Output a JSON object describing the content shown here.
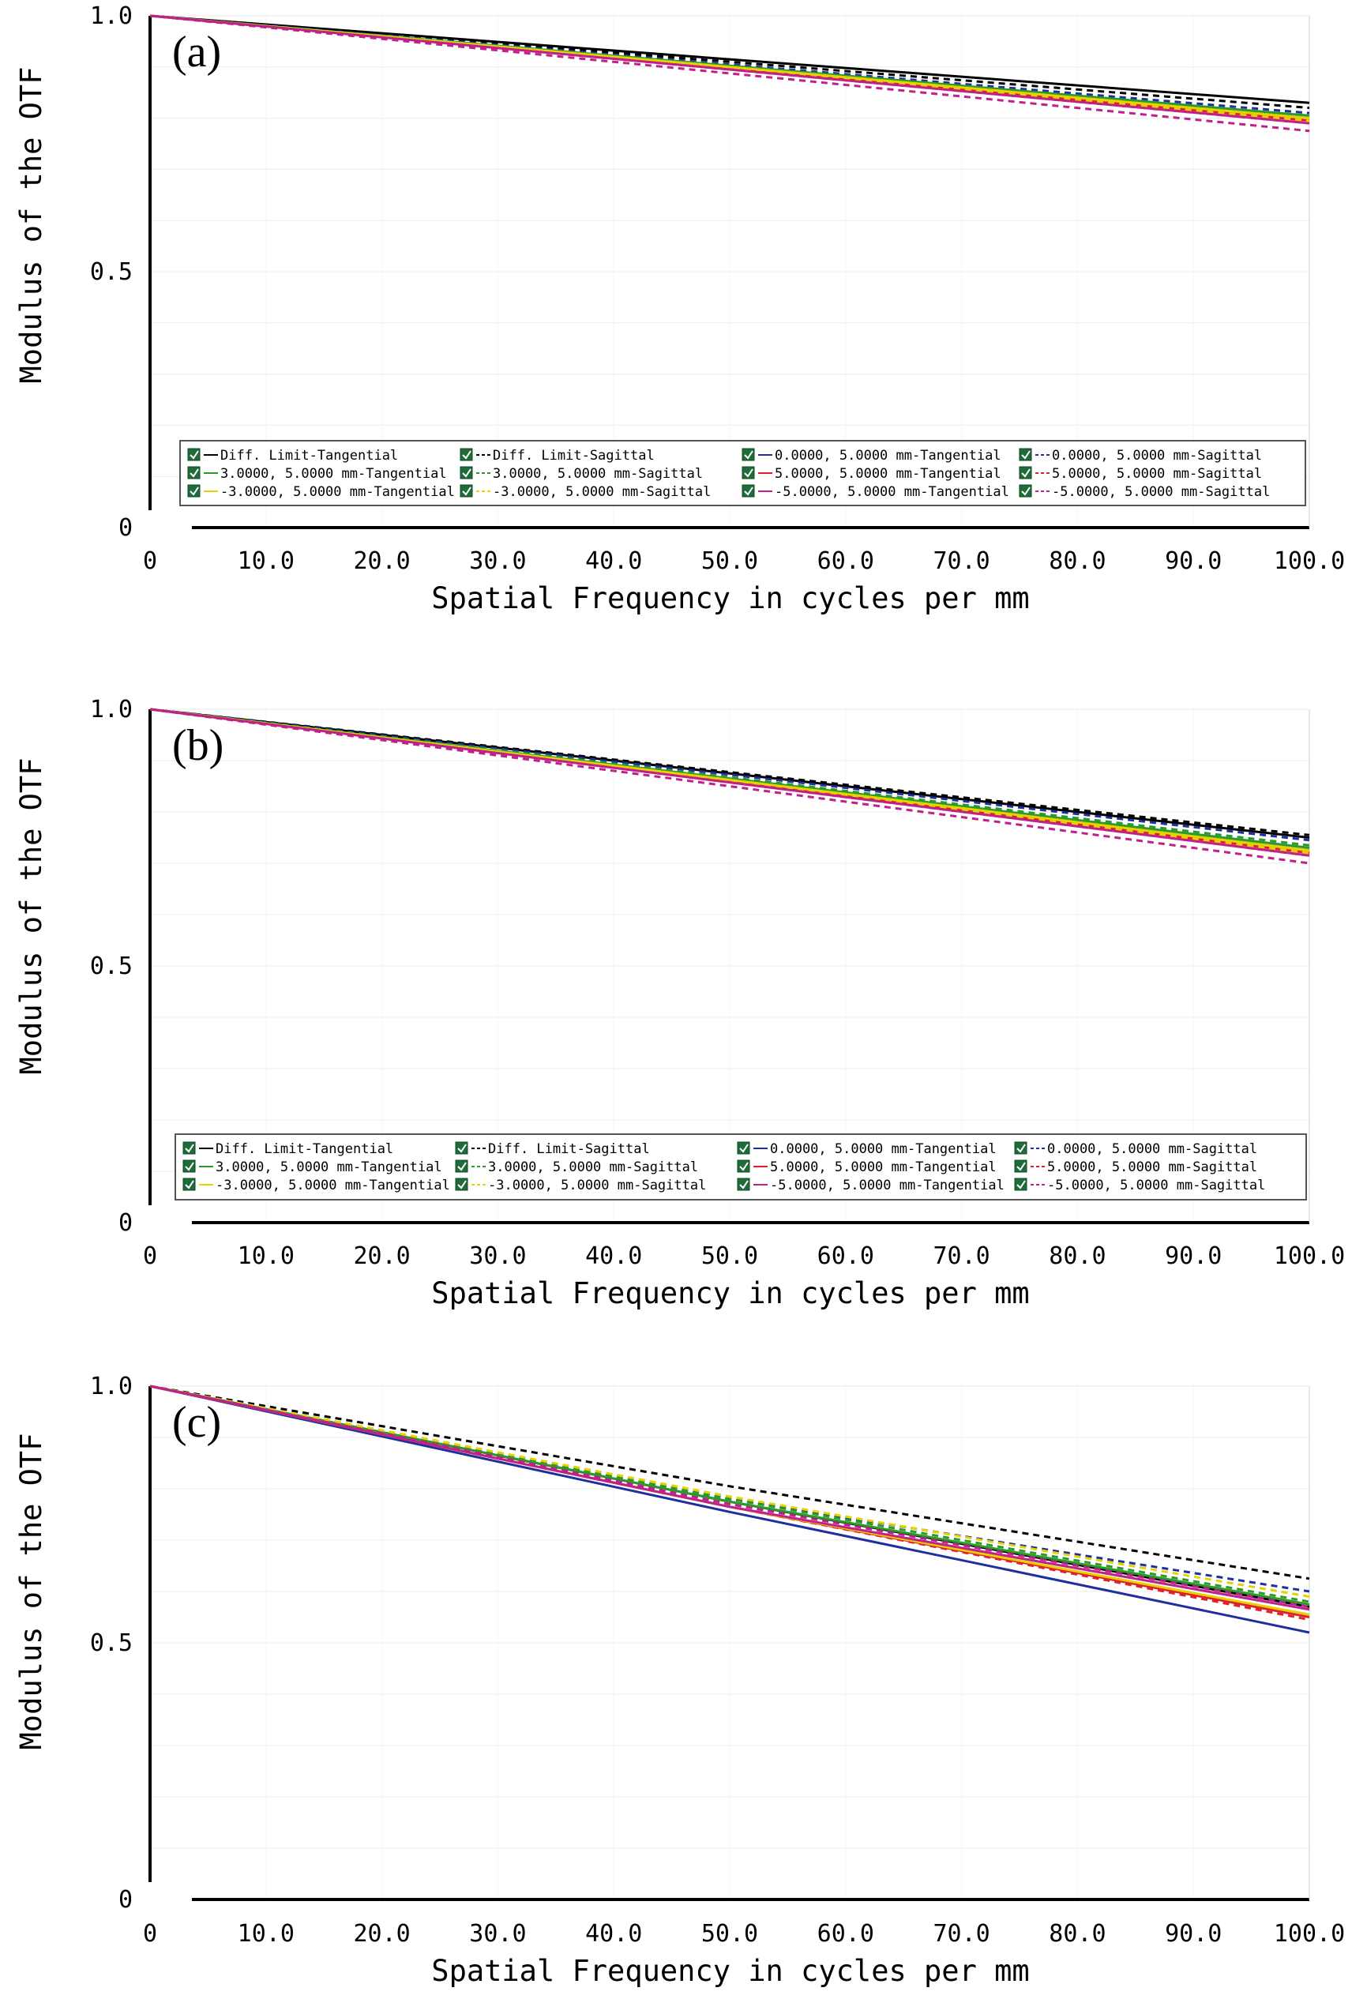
{
  "chart_data": [
    {
      "type": "line",
      "panel_label": "(a)",
      "xlabel": "Spatial Frequency in cycles per mm",
      "ylabel": "Modulus of the OTF",
      "xlim": [
        0,
        100
      ],
      "ylim": [
        0,
        1
      ],
      "xticks": [
        "0",
        "10.0",
        "20.0",
        "30.0",
        "40.0",
        "50.0",
        "60.0",
        "70.0",
        "80.0",
        "90.0",
        "100.0"
      ],
      "yticks": [
        "0",
        "0.5",
        "1.0"
      ],
      "grid": true,
      "legend_position": "bottom",
      "x": [
        0,
        100
      ],
      "series": [
        {
          "name": "Diff. Limit-Tangential",
          "color": "#000000",
          "dashed": false,
          "values": [
            1.0,
            0.83
          ]
        },
        {
          "name": "Diff. Limit-Sagittal",
          "color": "#000000",
          "dashed": true,
          "values": [
            1.0,
            0.82
          ]
        },
        {
          "name": "0.0000, 5.0000 mm-Tangential",
          "color": "#1f2f9f",
          "dashed": false,
          "values": [
            1.0,
            0.8
          ]
        },
        {
          "name": "0.0000, 5.0000 mm-Sagittal",
          "color": "#1f2f9f",
          "dashed": true,
          "values": [
            1.0,
            0.81
          ]
        },
        {
          "name": "3.0000, 5.0000 mm-Tangential",
          "color": "#2a9a2a",
          "dashed": false,
          "values": [
            1.0,
            0.805
          ]
        },
        {
          "name": "3.0000, 5.0000 mm-Sagittal",
          "color": "#2a9a2a",
          "dashed": true,
          "values": [
            1.0,
            0.8
          ]
        },
        {
          "name": "5.0000, 5.0000 mm-Tangential",
          "color": "#e0202a",
          "dashed": false,
          "values": [
            1.0,
            0.795
          ]
        },
        {
          "name": "5.0000, 5.0000 mm-Sagittal",
          "color": "#e0202a",
          "dashed": true,
          "values": [
            1.0,
            0.79
          ]
        },
        {
          "name": "-3.0000, 5.0000 mm-Tangential",
          "color": "#e6d200",
          "dashed": false,
          "values": [
            1.0,
            0.8
          ]
        },
        {
          "name": "-3.0000, 5.0000 mm-Sagittal",
          "color": "#e6d200",
          "dashed": true,
          "values": [
            1.0,
            0.795
          ]
        },
        {
          "name": "-5.0000, 5.0000 mm-Tangential",
          "color": "#c0208a",
          "dashed": false,
          "values": [
            1.0,
            0.79
          ]
        },
        {
          "name": "-5.0000, 5.0000 mm-Sagittal",
          "color": "#c0208a",
          "dashed": true,
          "values": [
            1.0,
            0.775
          ]
        }
      ]
    },
    {
      "type": "line",
      "panel_label": "(b)",
      "xlabel": "Spatial Frequency in cycles per mm",
      "ylabel": "Modulus of the OTF",
      "xlim": [
        0,
        100
      ],
      "ylim": [
        0,
        1
      ],
      "xticks": [
        "0",
        "10.0",
        "20.0",
        "30.0",
        "40.0",
        "50.0",
        "60.0",
        "70.0",
        "80.0",
        "90.0",
        "100.0"
      ],
      "yticks": [
        "0",
        "0.5",
        "1.0"
      ],
      "grid": true,
      "legend_position": "bottom",
      "x": [
        0,
        100
      ],
      "series": [
        {
          "name": "Diff. Limit-Tangential",
          "color": "#000000",
          "dashed": false,
          "values": [
            1.0,
            0.75
          ]
        },
        {
          "name": "Diff. Limit-Sagittal",
          "color": "#000000",
          "dashed": true,
          "values": [
            1.0,
            0.755
          ]
        },
        {
          "name": "0.0000, 5.0000 mm-Tangential",
          "color": "#1f2f9f",
          "dashed": false,
          "values": [
            1.0,
            0.725
          ]
        },
        {
          "name": "0.0000, 5.0000 mm-Sagittal",
          "color": "#1f2f9f",
          "dashed": true,
          "values": [
            1.0,
            0.745
          ]
        },
        {
          "name": "3.0000, 5.0000 mm-Tangential",
          "color": "#2a9a2a",
          "dashed": false,
          "values": [
            1.0,
            0.73
          ]
        },
        {
          "name": "3.0000, 5.0000 mm-Sagittal",
          "color": "#2a9a2a",
          "dashed": true,
          "values": [
            1.0,
            0.735
          ]
        },
        {
          "name": "5.0000, 5.0000 mm-Tangential",
          "color": "#e0202a",
          "dashed": false,
          "values": [
            1.0,
            0.72
          ]
        },
        {
          "name": "5.0000, 5.0000 mm-Sagittal",
          "color": "#e0202a",
          "dashed": true,
          "values": [
            1.0,
            0.715
          ]
        },
        {
          "name": "-3.0000, 5.0000 mm-Tangential",
          "color": "#e6d200",
          "dashed": false,
          "values": [
            1.0,
            0.725
          ]
        },
        {
          "name": "-3.0000, 5.0000 mm-Sagittal",
          "color": "#e6d200",
          "dashed": true,
          "values": [
            1.0,
            0.72
          ]
        },
        {
          "name": "-5.0000, 5.0000 mm-Tangential",
          "color": "#c0208a",
          "dashed": false,
          "values": [
            1.0,
            0.715
          ]
        },
        {
          "name": "-5.0000, 5.0000 mm-Sagittal",
          "color": "#c0208a",
          "dashed": true,
          "values": [
            1.0,
            0.7
          ]
        }
      ]
    },
    {
      "type": "line",
      "panel_label": "(c)",
      "xlabel": "Spatial Frequency in cycles per mm",
      "ylabel": "Modulus of the OTF",
      "xlim": [
        0,
        100
      ],
      "ylim": [
        0,
        1
      ],
      "xticks": [
        "0",
        "10.0",
        "20.0",
        "30.0",
        "40.0",
        "50.0",
        "60.0",
        "70.0",
        "80.0",
        "90.0",
        "100.0"
      ],
      "yticks": [
        "0",
        "0.5",
        "1.0"
      ],
      "grid": true,
      "legend_position": "none",
      "x": [
        0,
        50,
        100
      ],
      "series": [
        {
          "name": "Diff. Limit-Tangential",
          "color": "#000000",
          "dashed": false,
          "values": [
            1.0,
            0.775,
            0.57
          ]
        },
        {
          "name": "Diff. Limit-Sagittal",
          "color": "#000000",
          "dashed": true,
          "values": [
            1.0,
            0.805,
            0.625
          ]
        },
        {
          "name": "0.0000, 5.0000 mm-Tangential",
          "color": "#1f2f9f",
          "dashed": false,
          "values": [
            1.0,
            0.755,
            0.52
          ]
        },
        {
          "name": "0.0000, 5.0000 mm-Sagittal",
          "color": "#1f2f9f",
          "dashed": true,
          "values": [
            1.0,
            0.78,
            0.6
          ]
        },
        {
          "name": "3.0000, 5.0000 mm-Tangential",
          "color": "#2a9a2a",
          "dashed": false,
          "values": [
            1.0,
            0.775,
            0.575
          ]
        },
        {
          "name": "3.0000, 5.0000 mm-Sagittal",
          "color": "#2a9a2a",
          "dashed": true,
          "values": [
            1.0,
            0.78,
            0.58
          ]
        },
        {
          "name": "5.0000, 5.0000 mm-Tangential",
          "color": "#e0202a",
          "dashed": false,
          "values": [
            1.0,
            0.765,
            0.55
          ]
        },
        {
          "name": "5.0000, 5.0000 mm-Sagittal",
          "color": "#e0202a",
          "dashed": true,
          "values": [
            1.0,
            0.765,
            0.545
          ]
        },
        {
          "name": "-3.0000, 5.0000 mm-Tangential",
          "color": "#e6d200",
          "dashed": false,
          "values": [
            1.0,
            0.765,
            0.555
          ]
        },
        {
          "name": "-3.0000, 5.0000 mm-Sagittal",
          "color": "#e6d200",
          "dashed": true,
          "values": [
            1.0,
            0.785,
            0.59
          ]
        },
        {
          "name": "-5.0000, 5.0000 mm-Tangential",
          "color": "#c0208a",
          "dashed": false,
          "values": [
            1.0,
            0.765,
            0.565
          ]
        },
        {
          "name": "-5.0000, 5.0000 mm-Sagittal",
          "color": "#c0208a",
          "dashed": true,
          "values": [
            1.0,
            0.77,
            0.57
          ]
        }
      ]
    }
  ]
}
